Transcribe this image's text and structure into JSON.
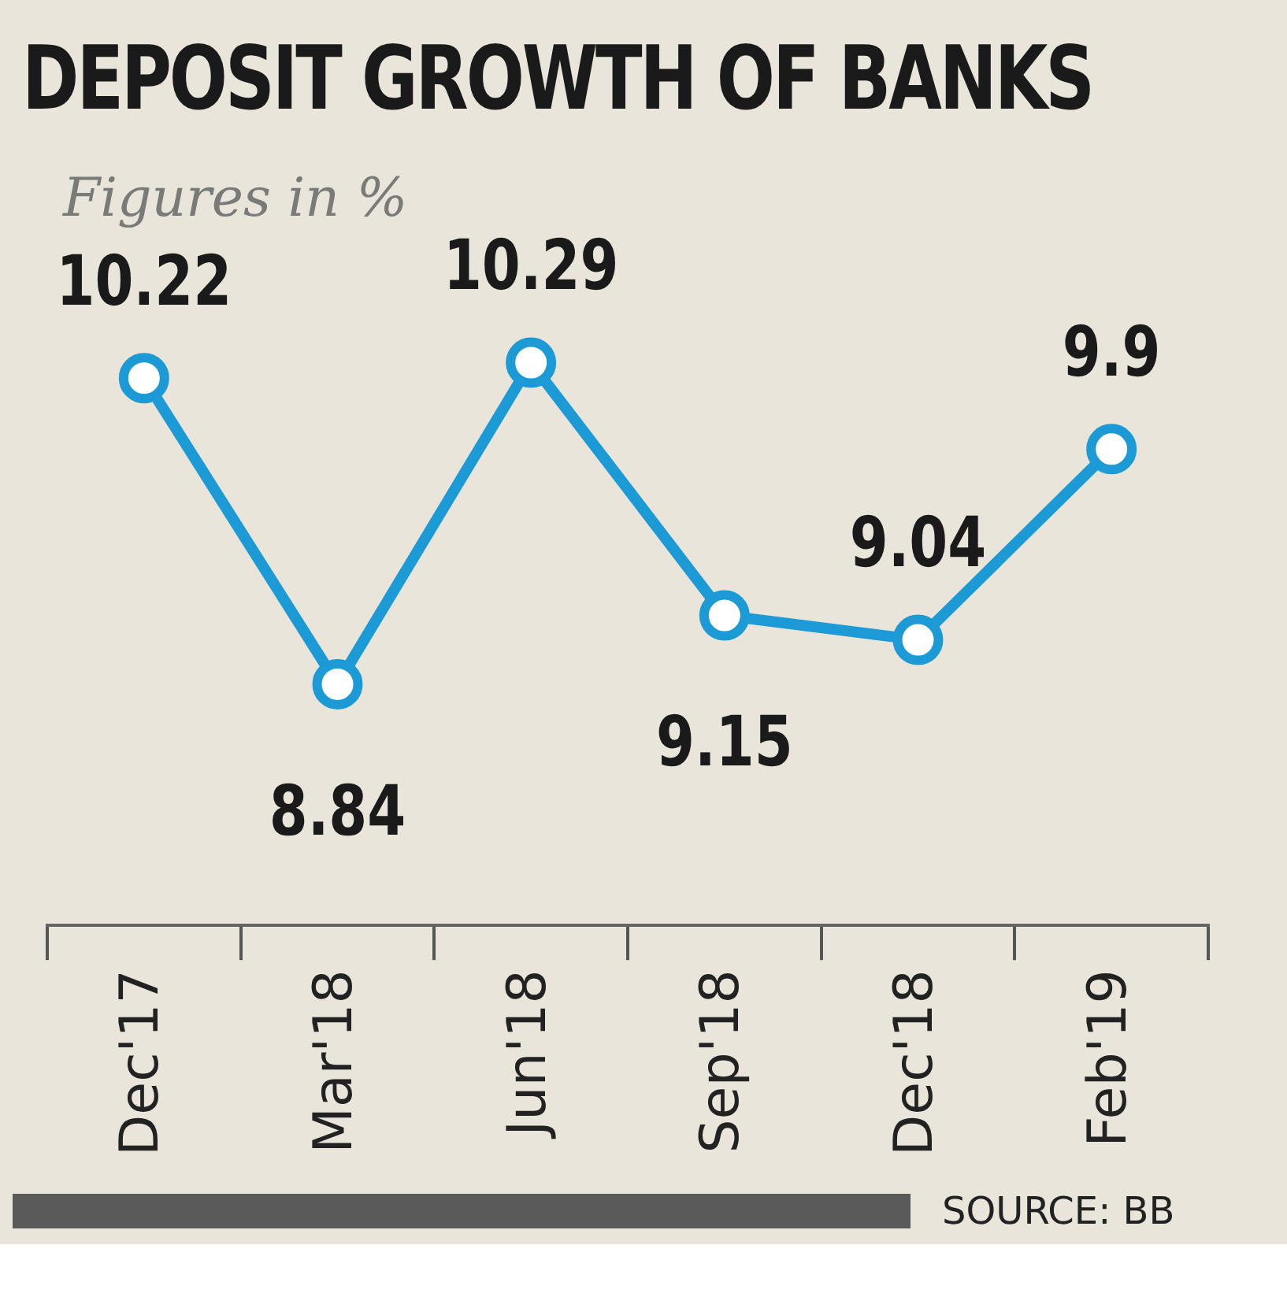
{
  "chart_data": {
    "type": "line",
    "title": "DEPOSIT GROWTH OF BANKS",
    "subtitle": "Figures in %",
    "categories": [
      "Dec'17",
      "Mar'18",
      "Jun'18",
      "Sep'18",
      "Dec'18",
      "Feb'19"
    ],
    "series": [
      {
        "color": "#1b9ad6",
        "values": [
          10.22,
          8.84,
          10.29,
          9.15,
          9.04,
          9.9
        ]
      }
    ],
    "data_labels": true,
    "marker": "circle",
    "line_style": "solid",
    "grid": false,
    "legend": false,
    "tick_labels": "x",
    "annotations": [
      "SOURCE: BB"
    ]
  }
}
